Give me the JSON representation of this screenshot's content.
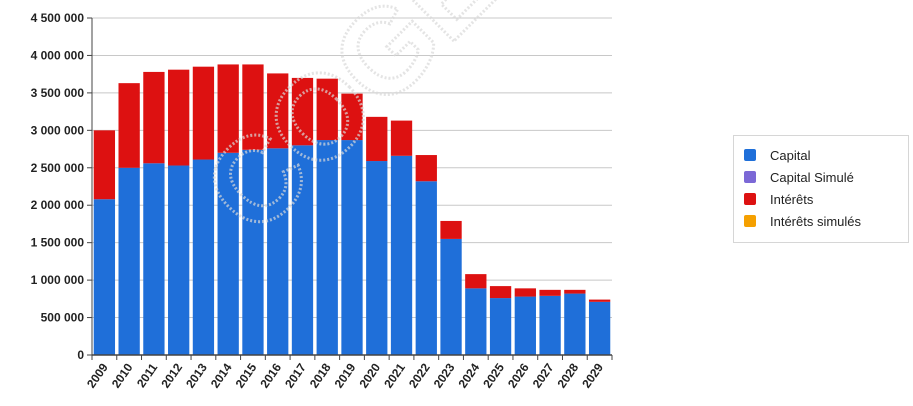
{
  "chart_data": {
    "type": "bar",
    "stacked": true,
    "categories": [
      "2009",
      "2010",
      "2011",
      "2012",
      "2013",
      "2014",
      "2015",
      "2016",
      "2017",
      "2018",
      "2019",
      "2020",
      "2021",
      "2022",
      "2023",
      "2024",
      "2025",
      "2026",
      "2027",
      "2028",
      "2029"
    ],
    "series": [
      {
        "name": "Capital",
        "color": "#1f6fd9",
        "values": [
          2080000,
          2500000,
          2560000,
          2530000,
          2610000,
          2700000,
          2740000,
          2760000,
          2800000,
          2870000,
          2870000,
          2590000,
          2660000,
          2320000,
          1550000,
          890000,
          760000,
          780000,
          790000,
          820000,
          710000
        ]
      },
      {
        "name": "Capital Simulé",
        "color": "#7b68d6",
        "values": [
          0,
          0,
          0,
          0,
          0,
          0,
          0,
          0,
          0,
          0,
          0,
          0,
          0,
          0,
          0,
          0,
          0,
          0,
          0,
          0,
          0
        ]
      },
      {
        "name": "Intérêts",
        "color": "#dd1111",
        "values": [
          920000,
          1130000,
          1220000,
          1280000,
          1240000,
          1180000,
          1140000,
          1000000,
          900000,
          820000,
          620000,
          590000,
          470000,
          350000,
          240000,
          190000,
          160000,
          110000,
          80000,
          50000,
          30000
        ]
      },
      {
        "name": "Intérêts simulés",
        "color": "#f5a000",
        "values": [
          0,
          0,
          0,
          0,
          0,
          0,
          0,
          0,
          0,
          0,
          0,
          0,
          0,
          0,
          0,
          0,
          0,
          0,
          0,
          0,
          0
        ]
      }
    ],
    "y_ticks": [
      "0",
      "500 000",
      "1 000 000",
      "1 500 000",
      "2 000 000",
      "2 500 000",
      "3 000 000",
      "3 500 000",
      "4 000 000",
      "4 500 000"
    ],
    "ylim": [
      0,
      4500000
    ],
    "grid": true,
    "legend_position": "right"
  },
  "watermark_text": "COGES"
}
